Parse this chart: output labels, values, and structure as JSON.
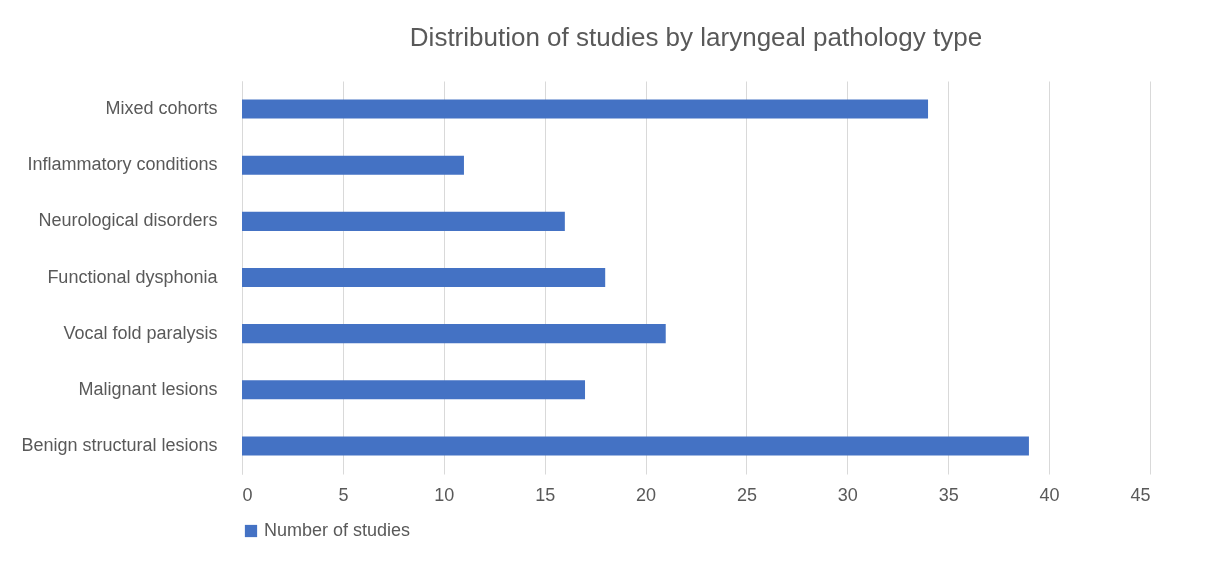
{
  "chart_data": {
    "type": "bar",
    "orientation": "horizontal",
    "title": "Distribution of studies by laryngeal pathology type",
    "categories": [
      "Mixed cohorts",
      "Inflammatory conditions",
      "Neurological disorders",
      "Functional dysphonia",
      "Vocal fold paralysis",
      "Malignant lesions",
      "Benign structural lesions"
    ],
    "series": [
      {
        "name": "Number of studies",
        "color": "#4472c4",
        "values": [
          34,
          11,
          16,
          18,
          21,
          17,
          39
        ]
      }
    ],
    "xlim": [
      0,
      45
    ],
    "xticks": [
      0,
      5,
      10,
      15,
      20,
      25,
      30,
      35,
      40,
      45
    ],
    "grid": "x",
    "legend": "bottom"
  }
}
